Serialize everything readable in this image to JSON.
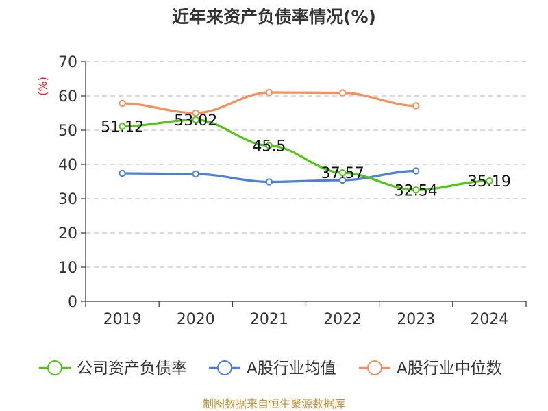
{
  "chart_data": {
    "type": "line",
    "title": "近年来资产负债率情况(%)",
    "ylabel": "(%)",
    "xlabel": "",
    "categories": [
      "2019",
      "2020",
      "2021",
      "2022",
      "2023",
      "2024"
    ],
    "ylim": [
      0,
      70
    ],
    "yticks": [
      0,
      10,
      20,
      30,
      40,
      50,
      60,
      70
    ],
    "grid": true,
    "legend_position": "bottom",
    "series": [
      {
        "name": "公司资产负债率",
        "color": "#52c41a",
        "values": [
          51.12,
          53.02,
          45.5,
          37.57,
          32.54,
          35.19
        ],
        "labels": [
          "51.12",
          "53.02",
          "45.5",
          "37.57",
          "32.54",
          "35.19"
        ]
      },
      {
        "name": "A股行业均值",
        "color": "#4a7fdb",
        "values": [
          37.4,
          37.2,
          34.9,
          35.4,
          38.1,
          null
        ]
      },
      {
        "name": "A股行业中位数",
        "color": "#f5905a",
        "values": [
          57.8,
          55.0,
          61.0,
          60.9,
          57.1,
          null
        ]
      }
    ],
    "source": "制图数据来自恒生聚源数据库"
  }
}
